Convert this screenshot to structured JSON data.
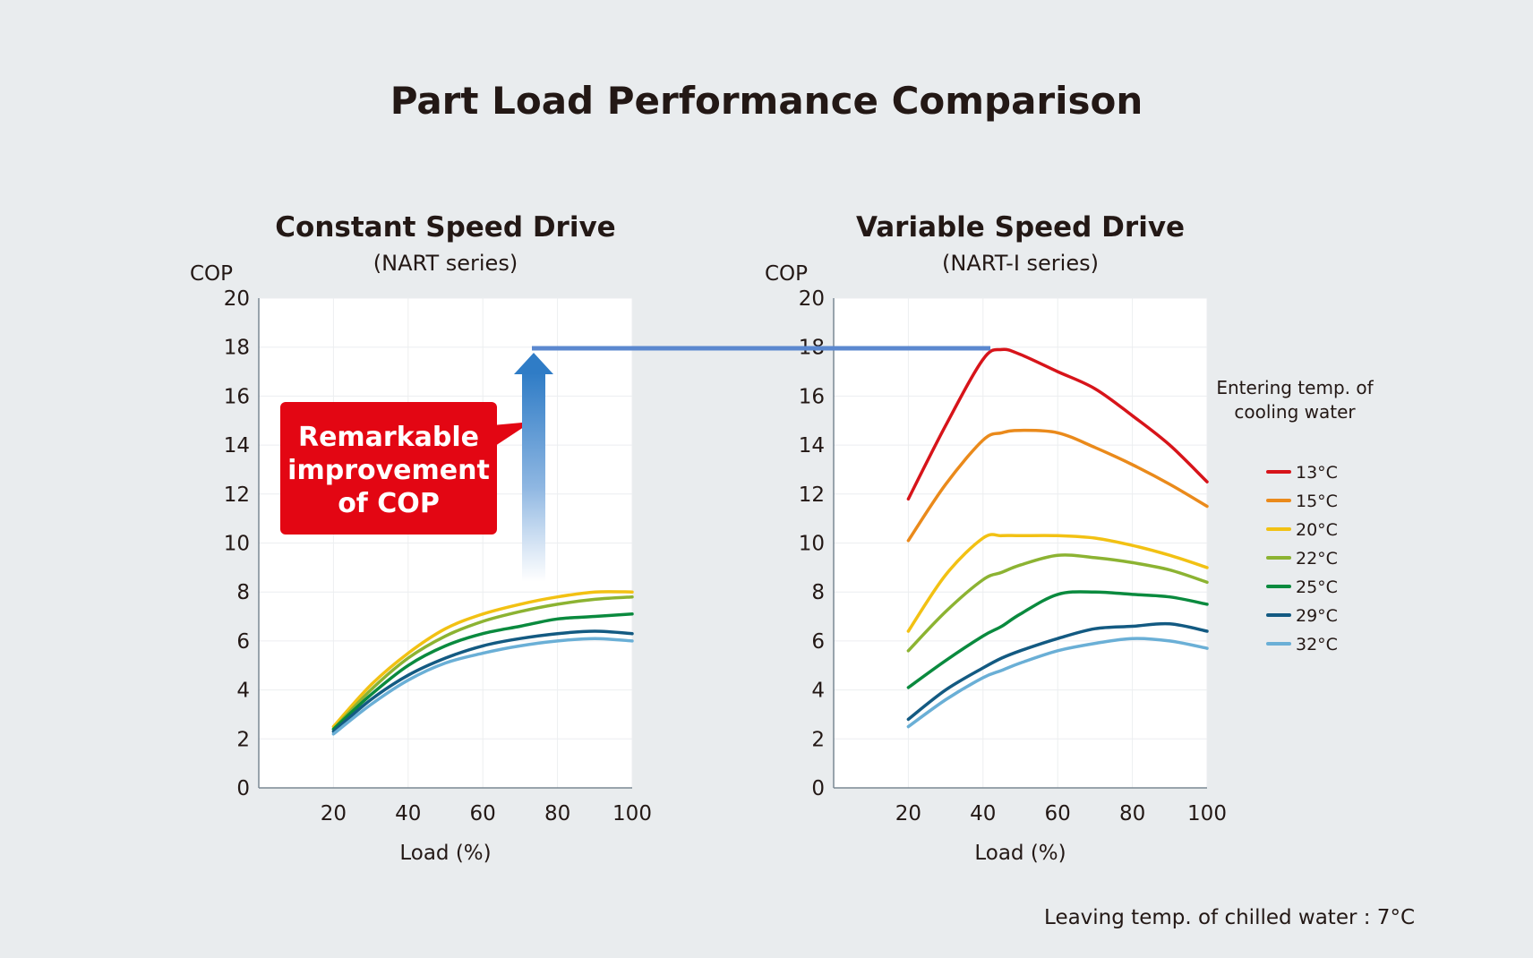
{
  "title": "Part Load Performance Comparison",
  "note": "Leaving temp. of chilled water : 7°C",
  "callout": {
    "lines": [
      "Remarkable",
      "improvement",
      "of COP"
    ],
    "color": "#e30613"
  },
  "legend": {
    "title_lines": [
      "Entering temp. of",
      "cooling water"
    ],
    "items": [
      {
        "label": "13°C",
        "color": "#d7141a"
      },
      {
        "label": "15°C",
        "color": "#ea8a1b"
      },
      {
        "label": "20°C",
        "color": "#f2c113"
      },
      {
        "label": "22°C",
        "color": "#8cb332"
      },
      {
        "label": "25°C",
        "color": "#0a8a3e"
      },
      {
        "label": "29°C",
        "color": "#135a82"
      },
      {
        "label": "32°C",
        "color": "#6aafd6"
      }
    ]
  },
  "chart_data": [
    {
      "type": "line",
      "title": "Constant Speed Drive",
      "subtitle": "(NART series)",
      "xlabel": "Load (%)",
      "ylabel": "COP",
      "xlim": [
        0,
        100
      ],
      "ylim": [
        0,
        20
      ],
      "xticks": [
        20,
        40,
        60,
        80,
        100
      ],
      "yticks": [
        0,
        2,
        4,
        6,
        8,
        10,
        12,
        14,
        16,
        18,
        20
      ],
      "grid": true,
      "x": [
        20,
        30,
        40,
        50,
        60,
        70,
        80,
        90,
        100
      ],
      "series": [
        {
          "name": "20°C",
          "values": [
            2.5,
            4.2,
            5.5,
            6.5,
            7.1,
            7.5,
            7.8,
            8.0,
            8.0
          ]
        },
        {
          "name": "22°C",
          "values": [
            2.4,
            4.0,
            5.3,
            6.2,
            6.8,
            7.2,
            7.5,
            7.7,
            7.8
          ]
        },
        {
          "name": "25°C",
          "values": [
            2.4,
            3.8,
            5.0,
            5.8,
            6.3,
            6.6,
            6.9,
            7.0,
            7.1
          ]
        },
        {
          "name": "29°C",
          "values": [
            2.3,
            3.6,
            4.6,
            5.3,
            5.8,
            6.1,
            6.3,
            6.4,
            6.3
          ]
        },
        {
          "name": "32°C",
          "values": [
            2.2,
            3.4,
            4.4,
            5.1,
            5.5,
            5.8,
            6.0,
            6.1,
            6.0
          ]
        }
      ]
    },
    {
      "type": "line",
      "title": "Variable Speed Drive",
      "subtitle": "(NART-I series)",
      "xlabel": "Load (%)",
      "ylabel": "COP",
      "xlim": [
        0,
        100
      ],
      "ylim": [
        0,
        20
      ],
      "xticks": [
        20,
        40,
        60,
        80,
        100
      ],
      "yticks": [
        0,
        2,
        4,
        6,
        8,
        10,
        12,
        14,
        16,
        18,
        20
      ],
      "grid": true,
      "x": [
        20,
        30,
        40,
        45,
        50,
        60,
        70,
        80,
        90,
        100
      ],
      "series": [
        {
          "name": "13°C",
          "values": [
            11.8,
            14.8,
            17.5,
            17.9,
            17.7,
            17.0,
            16.3,
            15.2,
            14.0,
            12.5
          ]
        },
        {
          "name": "15°C",
          "values": [
            10.1,
            12.4,
            14.2,
            14.5,
            14.6,
            14.5,
            13.9,
            13.2,
            12.4,
            11.5
          ]
        },
        {
          "name": "20°C",
          "values": [
            6.4,
            8.7,
            10.2,
            10.3,
            10.3,
            10.3,
            10.2,
            9.9,
            9.5,
            9.0
          ]
        },
        {
          "name": "22°C",
          "values": [
            5.6,
            7.2,
            8.5,
            8.8,
            9.1,
            9.5,
            9.4,
            9.2,
            8.9,
            8.4
          ]
        },
        {
          "name": "25°C",
          "values": [
            4.1,
            5.2,
            6.2,
            6.6,
            7.1,
            7.9,
            8.0,
            7.9,
            7.8,
            7.5
          ]
        },
        {
          "name": "29°C",
          "values": [
            2.8,
            4.0,
            4.9,
            5.3,
            5.6,
            6.1,
            6.5,
            6.6,
            6.7,
            6.4
          ]
        },
        {
          "name": "32°C",
          "values": [
            2.5,
            3.6,
            4.5,
            4.8,
            5.1,
            5.6,
            5.9,
            6.1,
            6.0,
            5.7
          ]
        }
      ]
    }
  ]
}
